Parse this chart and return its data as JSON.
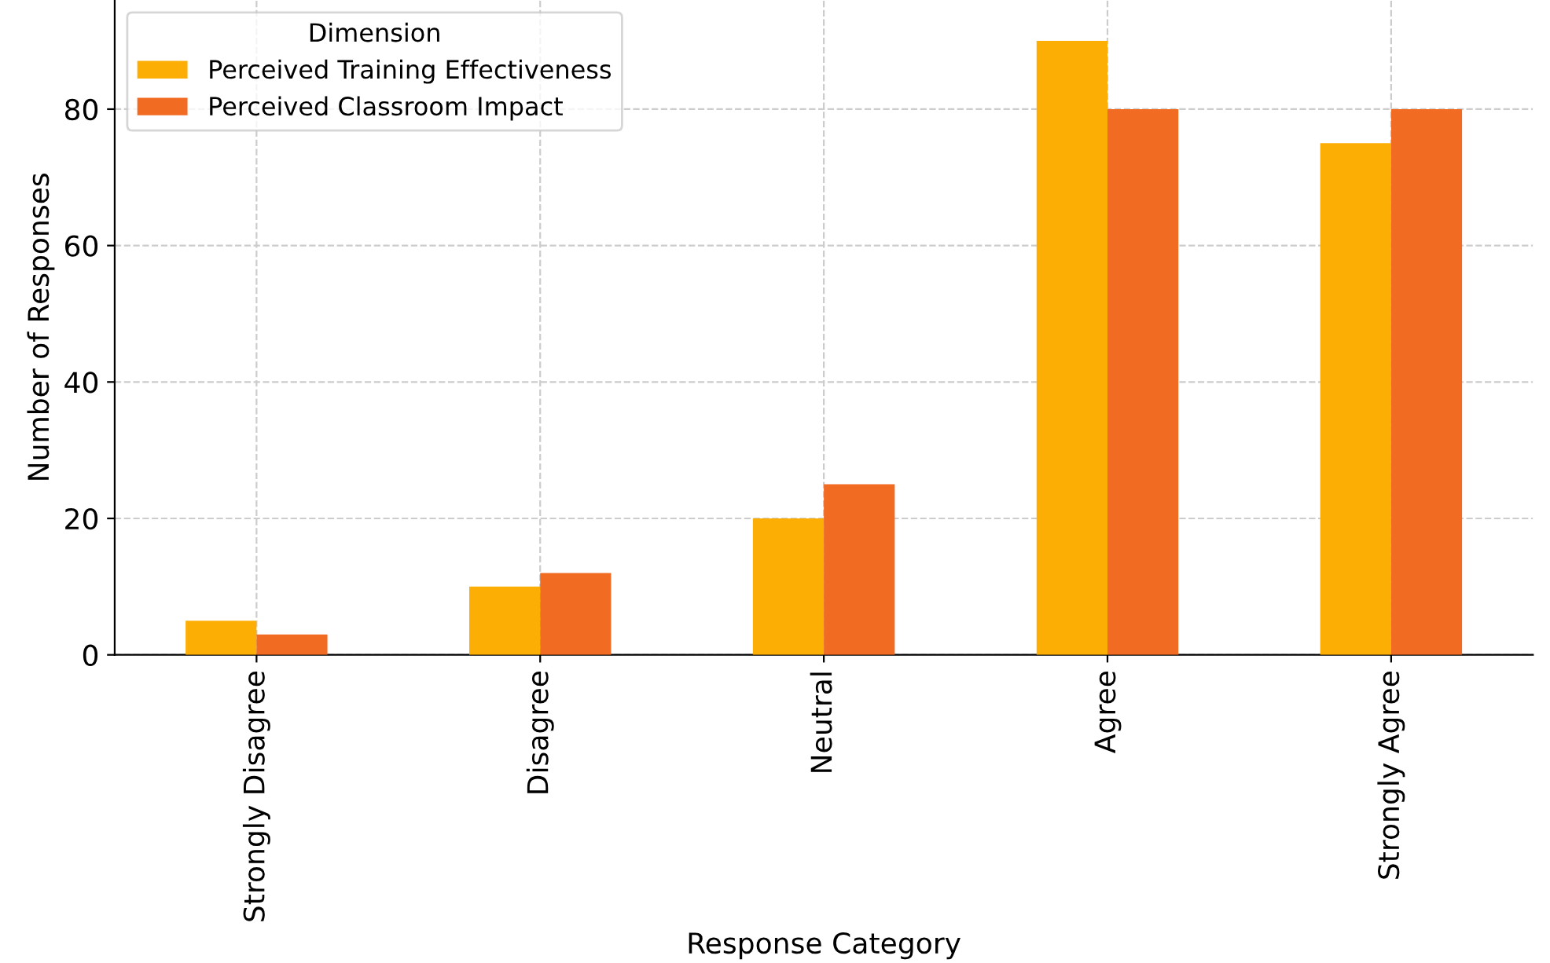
{
  "chart_data": {
    "type": "bar",
    "xlabel": "Response Category",
    "ylabel": "Number of Responses",
    "legend_title": "Dimension",
    "categories": [
      "Strongly Disagree",
      "Disagree",
      "Neutral",
      "Agree",
      "Strongly Agree"
    ],
    "series": [
      {
        "name": "Perceived Training Effectiveness",
        "color": "#fcae05",
        "values": [
          5,
          10,
          20,
          90,
          75
        ]
      },
      {
        "name": "Perceived Classroom Impact",
        "color": "#f26b22",
        "values": [
          3,
          12,
          25,
          80,
          80
        ]
      }
    ],
    "ylim": [
      0,
      96
    ],
    "yticks": [
      0,
      20,
      40,
      60,
      80
    ],
    "grid": true,
    "legend": "top left"
  }
}
